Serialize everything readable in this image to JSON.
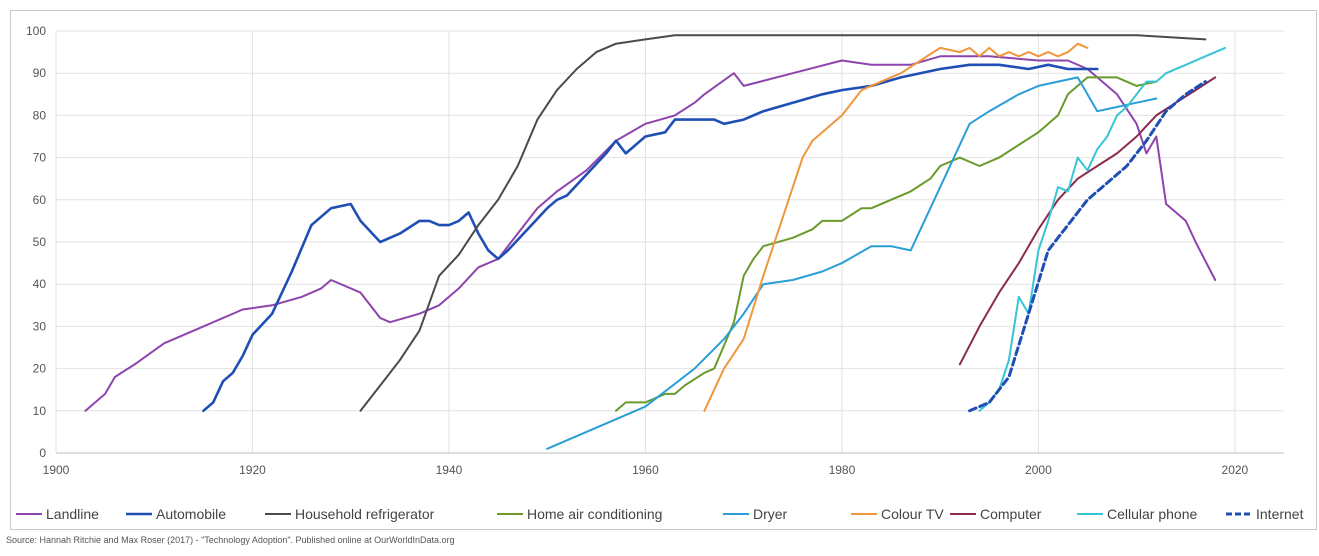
{
  "source_note": "Source: Hannah Ritchie and Max Roser (2017) - \"Technology Adoption\". Published online at OurWorldInData.org",
  "chart_data": {
    "type": "line",
    "title": "",
    "xlabel": "",
    "ylabel": "",
    "xlim": [
      1900,
      2025
    ],
    "ylim": [
      0,
      100
    ],
    "x_ticks": [
      1900,
      1920,
      1940,
      1960,
      1980,
      2000,
      2020
    ],
    "y_ticks": [
      0,
      10,
      20,
      30,
      40,
      50,
      60,
      70,
      80,
      90,
      100
    ],
    "grid": "vertical and horizontal",
    "legend_position": "bottom",
    "series": [
      {
        "name": "Landline",
        "color": "#8e44ad",
        "dash": false,
        "width": 2,
        "points": [
          [
            1903,
            10
          ],
          [
            1905,
            14
          ],
          [
            1906,
            18
          ],
          [
            1908,
            21
          ],
          [
            1911,
            26
          ],
          [
            1915,
            30
          ],
          [
            1919,
            34
          ],
          [
            1922,
            35
          ],
          [
            1925,
            37
          ],
          [
            1927,
            39
          ],
          [
            1928,
            41
          ],
          [
            1931,
            38
          ],
          [
            1933,
            32
          ],
          [
            1934,
            31
          ],
          [
            1937,
            33
          ],
          [
            1939,
            35
          ],
          [
            1941,
            39
          ],
          [
            1943,
            44
          ],
          [
            1945,
            46
          ],
          [
            1947,
            52
          ],
          [
            1949,
            58
          ],
          [
            1951,
            62
          ],
          [
            1954,
            67
          ],
          [
            1957,
            74
          ],
          [
            1960,
            78
          ],
          [
            1963,
            80
          ],
          [
            1965,
            83
          ],
          [
            1966,
            85
          ],
          [
            1969,
            90
          ],
          [
            1970,
            87
          ],
          [
            1975,
            90
          ],
          [
            1980,
            93
          ],
          [
            1983,
            92
          ],
          [
            1987,
            92
          ],
          [
            1990,
            94
          ],
          [
            1995,
            94
          ],
          [
            2000,
            93
          ],
          [
            2003,
            93
          ],
          [
            2005,
            91
          ],
          [
            2008,
            85
          ],
          [
            2010,
            78
          ],
          [
            2011,
            71
          ],
          [
            2012,
            75
          ],
          [
            2013,
            59
          ],
          [
            2015,
            55
          ],
          [
            2016,
            50
          ],
          [
            2018,
            41
          ]
        ]
      },
      {
        "name": "Automobile",
        "color": "#1f4fb5",
        "dash": false,
        "width": 2.6,
        "points": [
          [
            1915,
            10
          ],
          [
            1916,
            12
          ],
          [
            1917,
            17
          ],
          [
            1918,
            19
          ],
          [
            1919,
            23
          ],
          [
            1920,
            28
          ],
          [
            1922,
            33
          ],
          [
            1924,
            43
          ],
          [
            1926,
            54
          ],
          [
            1928,
            58
          ],
          [
            1930,
            59
          ],
          [
            1931,
            55
          ],
          [
            1933,
            50
          ],
          [
            1935,
            52
          ],
          [
            1937,
            55
          ],
          [
            1938,
            55
          ],
          [
            1939,
            54
          ],
          [
            1940,
            54
          ],
          [
            1941,
            55
          ],
          [
            1942,
            57
          ],
          [
            1943,
            52
          ],
          [
            1944,
            48
          ],
          [
            1945,
            46
          ],
          [
            1946,
            48
          ],
          [
            1948,
            53
          ],
          [
            1950,
            58
          ],
          [
            1951,
            60
          ],
          [
            1952,
            61
          ],
          [
            1954,
            66
          ],
          [
            1956,
            71
          ],
          [
            1957,
            74
          ],
          [
            1958,
            71
          ],
          [
            1960,
            75
          ],
          [
            1962,
            76
          ],
          [
            1963,
            79
          ],
          [
            1967,
            79
          ],
          [
            1968,
            78
          ],
          [
            1970,
            79
          ],
          [
            1972,
            81
          ],
          [
            1975,
            83
          ],
          [
            1978,
            85
          ],
          [
            1980,
            86
          ],
          [
            1983,
            87
          ],
          [
            1986,
            89
          ],
          [
            1990,
            91
          ],
          [
            1993,
            92
          ],
          [
            1996,
            92
          ],
          [
            1999,
            91
          ],
          [
            2001,
            92
          ],
          [
            2003,
            91
          ],
          [
            2006,
            91
          ]
        ]
      },
      {
        "name": "Household refrigerator",
        "color": "#4a4a4a",
        "dash": false,
        "width": 2,
        "points": [
          [
            1931,
            10
          ],
          [
            1933,
            16
          ],
          [
            1935,
            22
          ],
          [
            1937,
            29
          ],
          [
            1939,
            42
          ],
          [
            1941,
            47
          ],
          [
            1943,
            54
          ],
          [
            1945,
            60
          ],
          [
            1947,
            68
          ],
          [
            1949,
            79
          ],
          [
            1951,
            86
          ],
          [
            1953,
            91
          ],
          [
            1955,
            95
          ],
          [
            1957,
            97
          ],
          [
            1960,
            98
          ],
          [
            1963,
            99
          ],
          [
            1970,
            99
          ],
          [
            1980,
            99
          ],
          [
            1990,
            99
          ],
          [
            2000,
            99
          ],
          [
            2010,
            99
          ],
          [
            2017,
            98
          ]
        ]
      },
      {
        "name": "Home air conditioning",
        "color": "#6b9a2b",
        "dash": false,
        "width": 2,
        "points": [
          [
            1957,
            10
          ],
          [
            1958,
            12
          ],
          [
            1960,
            12
          ],
          [
            1962,
            14
          ],
          [
            1963,
            14
          ],
          [
            1964,
            16
          ],
          [
            1966,
            19
          ],
          [
            1967,
            20
          ],
          [
            1969,
            31
          ],
          [
            1970,
            42
          ],
          [
            1971,
            46
          ],
          [
            1972,
            49
          ],
          [
            1975,
            51
          ],
          [
            1977,
            53
          ],
          [
            1978,
            55
          ],
          [
            1980,
            55
          ],
          [
            1982,
            58
          ],
          [
            1983,
            58
          ],
          [
            1985,
            60
          ],
          [
            1987,
            62
          ],
          [
            1989,
            65
          ],
          [
            1990,
            68
          ],
          [
            1992,
            70
          ],
          [
            1994,
            68
          ],
          [
            1996,
            70
          ],
          [
            1998,
            73
          ],
          [
            2000,
            76
          ],
          [
            2002,
            80
          ],
          [
            2003,
            85
          ],
          [
            2005,
            89
          ],
          [
            2008,
            89
          ],
          [
            2010,
            87
          ],
          [
            2012,
            88
          ]
        ]
      },
      {
        "name": "Dryer",
        "color": "#2a9ed8",
        "dash": false,
        "width": 2,
        "points": [
          [
            1950,
            1
          ],
          [
            1955,
            6
          ],
          [
            1960,
            11
          ],
          [
            1965,
            20
          ],
          [
            1968,
            27
          ],
          [
            1970,
            33
          ],
          [
            1972,
            40
          ],
          [
            1975,
            41
          ],
          [
            1978,
            43
          ],
          [
            1980,
            45
          ],
          [
            1983,
            49
          ],
          [
            1985,
            49
          ],
          [
            1987,
            48
          ],
          [
            1990,
            63
          ],
          [
            1993,
            78
          ],
          [
            1995,
            81
          ],
          [
            1998,
            85
          ],
          [
            2000,
            87
          ],
          [
            2002,
            88
          ],
          [
            2004,
            89
          ],
          [
            2006,
            81
          ],
          [
            2008,
            82
          ],
          [
            2010,
            83
          ],
          [
            2012,
            84
          ]
        ]
      },
      {
        "name": "Colour TV",
        "color": "#f0963c",
        "dash": false,
        "width": 2,
        "points": [
          [
            1966,
            10
          ],
          [
            1967,
            15
          ],
          [
            1968,
            20
          ],
          [
            1970,
            27
          ],
          [
            1972,
            42
          ],
          [
            1974,
            56
          ],
          [
            1976,
            70
          ],
          [
            1977,
            74
          ],
          [
            1979,
            78
          ],
          [
            1980,
            80
          ],
          [
            1982,
            86
          ],
          [
            1984,
            88
          ],
          [
            1986,
            90
          ],
          [
            1988,
            93
          ],
          [
            1990,
            96
          ],
          [
            1992,
            95
          ],
          [
            1993,
            96
          ],
          [
            1994,
            94
          ],
          [
            1995,
            96
          ],
          [
            1996,
            94
          ],
          [
            1997,
            95
          ],
          [
            1998,
            94
          ],
          [
            1999,
            95
          ],
          [
            2000,
            94
          ],
          [
            2001,
            95
          ],
          [
            2002,
            94
          ],
          [
            2003,
            95
          ],
          [
            2004,
            97
          ],
          [
            2005,
            96
          ]
        ]
      },
      {
        "name": "Computer",
        "color": "#8b2b4e",
        "dash": false,
        "width": 2,
        "points": [
          [
            1992,
            21
          ],
          [
            1994,
            30
          ],
          [
            1996,
            38
          ],
          [
            1998,
            45
          ],
          [
            2000,
            53
          ],
          [
            2002,
            60
          ],
          [
            2004,
            65
          ],
          [
            2006,
            68
          ],
          [
            2008,
            71
          ],
          [
            2010,
            75
          ],
          [
            2012,
            80
          ],
          [
            2014,
            83
          ],
          [
            2016,
            86
          ],
          [
            2018,
            89
          ]
        ]
      },
      {
        "name": "Cellular phone",
        "color": "#36c4d6",
        "dash": false,
        "width": 2,
        "points": [
          [
            1994,
            10
          ],
          [
            1995,
            12
          ],
          [
            1996,
            15
          ],
          [
            1997,
            22
          ],
          [
            1998,
            37
          ],
          [
            1999,
            33
          ],
          [
            2000,
            48
          ],
          [
            2001,
            55
          ],
          [
            2002,
            63
          ],
          [
            2003,
            62
          ],
          [
            2004,
            70
          ],
          [
            2005,
            67
          ],
          [
            2006,
            72
          ],
          [
            2007,
            75
          ],
          [
            2008,
            80
          ],
          [
            2009,
            82
          ],
          [
            2010,
            85
          ],
          [
            2011,
            88
          ],
          [
            2012,
            88
          ],
          [
            2013,
            90
          ],
          [
            2015,
            92
          ],
          [
            2017,
            94
          ],
          [
            2019,
            96
          ]
        ]
      },
      {
        "name": "Internet",
        "color": "#1f4fb5",
        "dash": true,
        "width": 3,
        "points": [
          [
            1993,
            10
          ],
          [
            1995,
            12
          ],
          [
            1997,
            18
          ],
          [
            1999,
            33
          ],
          [
            2001,
            48
          ],
          [
            2003,
            54
          ],
          [
            2005,
            60
          ],
          [
            2007,
            64
          ],
          [
            2009,
            68
          ],
          [
            2011,
            74
          ],
          [
            2013,
            81
          ],
          [
            2015,
            85
          ],
          [
            2017,
            88
          ]
        ]
      }
    ]
  }
}
